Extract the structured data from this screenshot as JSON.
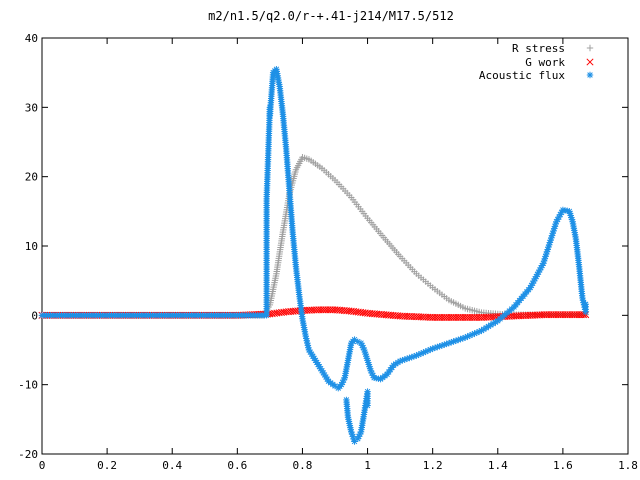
{
  "chart_data": {
    "type": "scatter",
    "title": "m2/n1.5/q2.0/r-+.41-j214/M17.5/512",
    "xlabel": "",
    "ylabel": "",
    "xlim": [
      0,
      1.8
    ],
    "ylim": [
      -20,
      40
    ],
    "x_ticks": [
      "0",
      "0.2",
      "0.4",
      "0.6",
      "0.8",
      "1",
      "1.2",
      "1.4",
      "1.6",
      "1.8"
    ],
    "y_ticks": [
      "40",
      "30",
      "20",
      "10",
      "0",
      "-10",
      "-20"
    ],
    "grid": false,
    "legend_position": "top-right",
    "series": [
      {
        "name": "R stress",
        "marker": "+",
        "color": "#a0a0a0",
        "points": [
          [
            0,
            0
          ],
          [
            0.2,
            0
          ],
          [
            0.4,
            0
          ],
          [
            0.6,
            0
          ],
          [
            0.68,
            0
          ],
          [
            0.7,
            1.5
          ],
          [
            0.72,
            6
          ],
          [
            0.74,
            12
          ],
          [
            0.76,
            17.5
          ],
          [
            0.78,
            21
          ],
          [
            0.8,
            22.8
          ],
          [
            0.82,
            22.5
          ],
          [
            0.86,
            21.2
          ],
          [
            0.9,
            19.5
          ],
          [
            0.95,
            17
          ],
          [
            1.0,
            14
          ],
          [
            1.05,
            11.2
          ],
          [
            1.1,
            8.5
          ],
          [
            1.15,
            6
          ],
          [
            1.2,
            4
          ],
          [
            1.25,
            2.2
          ],
          [
            1.3,
            1.0
          ],
          [
            1.35,
            0.4
          ],
          [
            1.4,
            0.2
          ],
          [
            1.45,
            0.1
          ],
          [
            1.5,
            0.1
          ],
          [
            1.55,
            0.1
          ],
          [
            1.6,
            0.1
          ],
          [
            1.65,
            0.1
          ],
          [
            1.67,
            0.1
          ]
        ]
      },
      {
        "name": "G work",
        "marker": "x",
        "color": "#ff0000",
        "points": [
          [
            0,
            0
          ],
          [
            0.2,
            0
          ],
          [
            0.4,
            0
          ],
          [
            0.6,
            0
          ],
          [
            0.7,
            0.2
          ],
          [
            0.75,
            0.5
          ],
          [
            0.8,
            0.7
          ],
          [
            0.85,
            0.8
          ],
          [
            0.9,
            0.8
          ],
          [
            0.95,
            0.6
          ],
          [
            1.0,
            0.3
          ],
          [
            1.05,
            0.1
          ],
          [
            1.1,
            -0.1
          ],
          [
            1.15,
            -0.2
          ],
          [
            1.2,
            -0.3
          ],
          [
            1.25,
            -0.3
          ],
          [
            1.3,
            -0.3
          ],
          [
            1.35,
            -0.3
          ],
          [
            1.4,
            -0.2
          ],
          [
            1.45,
            -0.1
          ],
          [
            1.5,
            0
          ],
          [
            1.55,
            0.1
          ],
          [
            1.6,
            0.1
          ],
          [
            1.65,
            0.1
          ],
          [
            1.67,
            0.1
          ]
        ]
      },
      {
        "name": "Acoustic flux",
        "marker": "asterisk",
        "color": "#1e90e6",
        "points": [
          [
            0,
            0
          ],
          [
            0.2,
            0
          ],
          [
            0.4,
            0
          ],
          [
            0.6,
            0
          ],
          [
            0.69,
            0
          ],
          [
            0.69,
            16.8
          ],
          [
            0.7,
            30
          ],
          [
            0.7,
            28.8
          ],
          [
            0.71,
            35
          ],
          [
            0.72,
            35.5
          ],
          [
            0.73,
            33
          ],
          [
            0.74,
            29
          ],
          [
            0.75,
            24
          ],
          [
            0.76,
            18
          ],
          [
            0.77,
            12
          ],
          [
            0.78,
            7
          ],
          [
            0.79,
            3
          ],
          [
            0.8,
            -0.5
          ],
          [
            0.81,
            -3
          ],
          [
            0.82,
            -5
          ],
          [
            0.84,
            -6.5
          ],
          [
            0.86,
            -8
          ],
          [
            0.88,
            -9.5
          ],
          [
            0.9,
            -10.2
          ],
          [
            0.91,
            -10.5
          ],
          [
            0.92,
            -10
          ],
          [
            0.93,
            -9
          ],
          [
            0.94,
            -6.5
          ],
          [
            0.95,
            -4
          ],
          [
            0.96,
            -3.5
          ],
          [
            0.97,
            -3.8
          ],
          [
            0.98,
            -4
          ],
          [
            0.99,
            -5
          ],
          [
            1.0,
            -6.5
          ],
          [
            1.01,
            -8
          ],
          [
            1.02,
            -9
          ],
          [
            1.04,
            -9.2
          ],
          [
            1.06,
            -8.5
          ],
          [
            1.08,
            -7.2
          ],
          [
            1.1,
            -6.6
          ],
          [
            1.15,
            -5.8
          ],
          [
            1.2,
            -4.8
          ],
          [
            1.25,
            -4
          ],
          [
            1.3,
            -3.2
          ],
          [
            1.35,
            -2.2
          ],
          [
            1.4,
            -0.8
          ],
          [
            1.45,
            1.2
          ],
          [
            1.5,
            4
          ],
          [
            1.54,
            7.5
          ],
          [
            1.56,
            10.5
          ],
          [
            1.58,
            13.5
          ],
          [
            1.6,
            15.2
          ],
          [
            1.62,
            15
          ],
          [
            1.63,
            13.5
          ],
          [
            1.64,
            11
          ],
          [
            1.65,
            7
          ],
          [
            1.66,
            2.5
          ],
          [
            1.67,
            0.5
          ],
          [
            1.67,
            1.6
          ],
          [
            0.935,
            -12.2
          ],
          [
            0.94,
            -14.7
          ],
          [
            0.95,
            -16.8
          ],
          [
            0.96,
            -18.2
          ],
          [
            0.97,
            -17.8
          ],
          [
            0.98,
            -16.8
          ],
          [
            0.99,
            -14
          ],
          [
            1.0,
            -11
          ],
          [
            1.0,
            -13
          ]
        ]
      }
    ]
  }
}
